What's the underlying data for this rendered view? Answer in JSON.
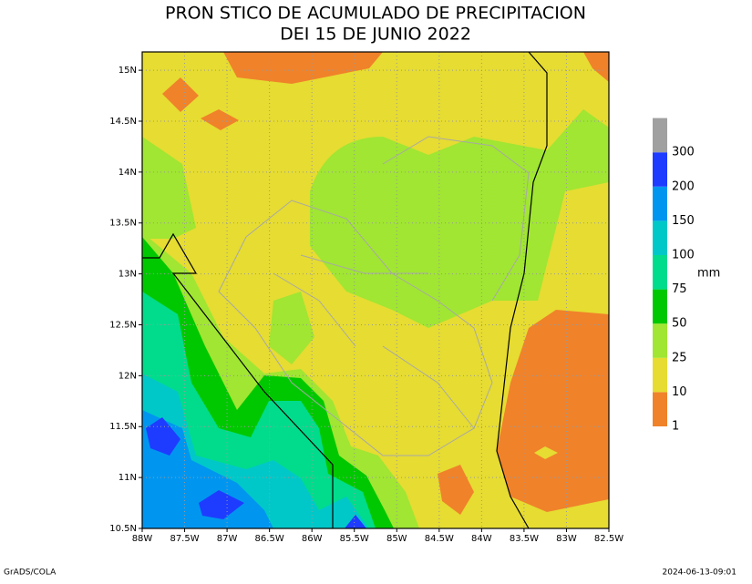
{
  "title": [
    "PRON  STICO DE ACUMULADO DE PRECIPITACION",
    "DEI 15 DE JUNIO 2022"
  ],
  "map": {
    "xlim": [
      -88,
      -82.5
    ],
    "ylim": [
      10.5,
      15.18
    ],
    "xticks": [
      {
        "value": -88,
        "label": "88W"
      },
      {
        "value": -87.5,
        "label": "87.5W"
      },
      {
        "value": -87,
        "label": "87W"
      },
      {
        "value": -86.5,
        "label": "86.5W"
      },
      {
        "value": -86,
        "label": "86W"
      },
      {
        "value": -85.5,
        "label": "85.5W"
      },
      {
        "value": -85,
        "label": "85W"
      },
      {
        "value": -84.5,
        "label": "84.5W"
      },
      {
        "value": -84,
        "label": "84W"
      },
      {
        "value": -83.5,
        "label": "83.5W"
      },
      {
        "value": -83,
        "label": "83W"
      },
      {
        "value": -82.5,
        "label": "82.5W"
      }
    ],
    "yticks": [
      {
        "value": 10.5,
        "label": "10.5N"
      },
      {
        "value": 11,
        "label": "11N"
      },
      {
        "value": 11.5,
        "label": "11.5N"
      },
      {
        "value": 12,
        "label": "12N"
      },
      {
        "value": 12.5,
        "label": "12.5N"
      },
      {
        "value": 13,
        "label": "13N"
      },
      {
        "value": 13.5,
        "label": "13.5N"
      },
      {
        "value": 14,
        "label": "14N"
      },
      {
        "value": 14.5,
        "label": "14.5N"
      },
      {
        "value": 15,
        "label": "15N"
      }
    ]
  },
  "colorbar": {
    "unit": "mm",
    "levels": [
      1,
      10,
      25,
      50,
      75,
      100,
      150,
      200,
      300
    ],
    "colors": [
      "#f0822a",
      "#e6dc32",
      "#a0e632",
      "#00c800",
      "#00dc8c",
      "#00c8c8",
      "#0096f0",
      "#1e3cff",
      "#a0a0a0"
    ]
  },
  "footer": {
    "left": "GrADS/COLA",
    "right": "2024-06-13-09:01"
  }
}
